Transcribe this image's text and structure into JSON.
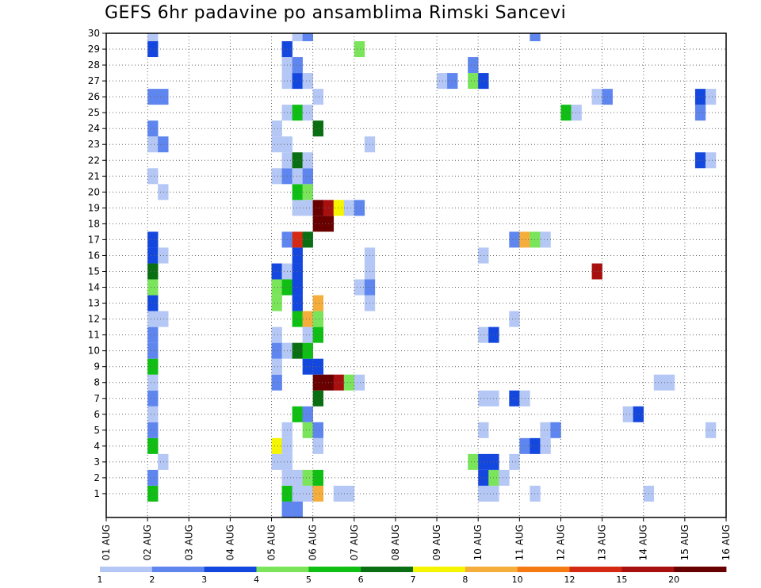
{
  "chart_data": {
    "type": "heatmap",
    "title": "GEFS 6hr padavine po ansamblima Rimski Sancevi",
    "xlabel": "",
    "ylabel": "",
    "x_ticks": [
      "01 AUG",
      "02 AUG",
      "03 AUG",
      "04 AUG",
      "05 AUG",
      "06 AUG",
      "07 AUG",
      "08 AUG",
      "09 AUG",
      "10 AUG",
      "11 AUG",
      "12 AUG",
      "13 AUG",
      "14 AUG",
      "15 AUG",
      "16 AUG"
    ],
    "y_ticks": [
      "1",
      "2",
      "3",
      "4",
      "5",
      "6",
      "7",
      "8",
      "9",
      "10",
      "11",
      "12",
      "13",
      "14",
      "15",
      "16",
      "17",
      "18",
      "19",
      "20",
      "21",
      "22",
      "23",
      "24",
      "25",
      "26",
      "27",
      "28",
      "29",
      "30"
    ],
    "x_range": [
      "01 AUG 00z",
      "16 AUG 00z"
    ],
    "y_range": [
      0,
      30
    ],
    "grid": true,
    "time_step_hours": 6,
    "colorbar": {
      "labels": [
        "1",
        "2",
        "3",
        "4",
        "5",
        "6",
        "7",
        "8",
        "10",
        "12",
        "15",
        "20"
      ],
      "colors": [
        "#b4c7f5",
        "#5f86ef",
        "#1447de",
        "#7ae55a",
        "#0fbf14",
        "#0a6e12",
        "#f5f500",
        "#f5ae3c",
        "#f57a14",
        "#d42a14",
        "#a81010",
        "#690000"
      ]
    },
    "cells": [
      [
        1,
        4,
        5
      ],
      [
        1,
        17,
        5
      ],
      [
        1,
        18,
        1
      ],
      [
        1,
        19,
        1
      ],
      [
        1,
        20,
        8
      ],
      [
        1,
        22,
        1
      ],
      [
        1,
        23,
        1
      ],
      [
        1,
        36,
        1
      ],
      [
        1,
        37,
        1
      ],
      [
        1,
        41,
        1
      ],
      [
        1,
        52,
        1
      ],
      [
        2,
        4,
        2
      ],
      [
        2,
        17,
        1
      ],
      [
        2,
        18,
        1
      ],
      [
        2,
        19,
        4
      ],
      [
        2,
        20,
        5
      ],
      [
        2,
        36,
        3
      ],
      [
        2,
        37,
        4
      ],
      [
        2,
        38,
        1
      ],
      [
        3,
        5,
        1
      ],
      [
        3,
        16,
        1
      ],
      [
        3,
        17,
        1
      ],
      [
        3,
        35,
        4
      ],
      [
        3,
        36,
        3
      ],
      [
        3,
        37,
        3
      ],
      [
        3,
        39,
        1
      ],
      [
        4,
        4,
        5
      ],
      [
        4,
        16,
        7
      ],
      [
        4,
        17,
        1
      ],
      [
        4,
        20,
        1
      ],
      [
        4,
        40,
        2
      ],
      [
        4,
        41,
        3
      ],
      [
        4,
        42,
        1
      ],
      [
        5,
        4,
        2
      ],
      [
        5,
        17,
        1
      ],
      [
        5,
        19,
        4
      ],
      [
        5,
        20,
        2
      ],
      [
        5,
        36,
        1
      ],
      [
        5,
        42,
        1
      ],
      [
        5,
        43,
        2
      ],
      [
        5,
        58,
        1
      ],
      [
        6,
        4,
        1
      ],
      [
        6,
        18,
        5
      ],
      [
        6,
        19,
        2
      ],
      [
        6,
        50,
        1
      ],
      [
        6,
        51,
        3
      ],
      [
        7,
        4,
        2
      ],
      [
        7,
        20,
        6
      ],
      [
        7,
        36,
        1
      ],
      [
        7,
        37,
        1
      ],
      [
        7,
        39,
        3
      ],
      [
        7,
        40,
        1
      ],
      [
        8,
        4,
        1
      ],
      [
        8,
        16,
        2
      ],
      [
        8,
        20,
        12
      ],
      [
        8,
        21,
        12
      ],
      [
        8,
        22,
        11
      ],
      [
        8,
        23,
        4
      ],
      [
        8,
        24,
        1
      ],
      [
        8,
        53,
        1
      ],
      [
        8,
        54,
        1
      ],
      [
        9,
        4,
        5
      ],
      [
        9,
        16,
        1
      ],
      [
        9,
        19,
        3
      ],
      [
        9,
        20,
        3
      ],
      [
        10,
        4,
        2
      ],
      [
        10,
        16,
        2
      ],
      [
        10,
        17,
        1
      ],
      [
        10,
        18,
        6
      ],
      [
        10,
        19,
        5
      ],
      [
        11,
        4,
        2
      ],
      [
        11,
        16,
        1
      ],
      [
        11,
        19,
        1
      ],
      [
        11,
        20,
        5
      ],
      [
        11,
        36,
        1
      ],
      [
        11,
        37,
        3
      ],
      [
        12,
        4,
        1
      ],
      [
        12,
        5,
        1
      ],
      [
        12,
        18,
        5
      ],
      [
        12,
        19,
        8
      ],
      [
        12,
        20,
        4
      ],
      [
        12,
        39,
        1
      ],
      [
        13,
        4,
        3
      ],
      [
        13,
        16,
        4
      ],
      [
        13,
        18,
        3
      ],
      [
        13,
        20,
        8
      ],
      [
        13,
        25,
        1
      ],
      [
        14,
        4,
        4
      ],
      [
        14,
        16,
        4
      ],
      [
        14,
        17,
        5
      ],
      [
        14,
        18,
        3
      ],
      [
        14,
        24,
        1
      ],
      [
        14,
        25,
        2
      ],
      [
        15,
        4,
        6
      ],
      [
        15,
        16,
        3
      ],
      [
        15,
        17,
        1
      ],
      [
        15,
        18,
        3
      ],
      [
        15,
        25,
        1
      ],
      [
        15,
        47,
        11
      ],
      [
        16,
        4,
        3
      ],
      [
        16,
        5,
        1
      ],
      [
        16,
        18,
        3
      ],
      [
        16,
        25,
        1
      ],
      [
        16,
        36,
        1
      ],
      [
        17,
        4,
        3
      ],
      [
        17,
        17,
        2
      ],
      [
        17,
        18,
        10
      ],
      [
        17,
        19,
        6
      ],
      [
        17,
        39,
        2
      ],
      [
        17,
        40,
        8
      ],
      [
        17,
        41,
        4
      ],
      [
        17,
        42,
        1
      ],
      [
        18,
        20,
        12
      ],
      [
        18,
        21,
        12
      ],
      [
        19,
        18,
        1
      ],
      [
        19,
        19,
        1
      ],
      [
        19,
        20,
        12
      ],
      [
        19,
        21,
        11
      ],
      [
        19,
        22,
        7
      ],
      [
        19,
        23,
        1
      ],
      [
        19,
        24,
        2
      ],
      [
        20,
        5,
        1
      ],
      [
        20,
        18,
        5
      ],
      [
        20,
        19,
        4
      ],
      [
        21,
        4,
        1
      ],
      [
        21,
        16,
        1
      ],
      [
        21,
        17,
        2
      ],
      [
        21,
        18,
        1
      ],
      [
        21,
        19,
        2
      ],
      [
        22,
        17,
        1
      ],
      [
        22,
        18,
        6
      ],
      [
        22,
        19,
        1
      ],
      [
        22,
        57,
        3
      ],
      [
        22,
        58,
        1
      ],
      [
        23,
        4,
        1
      ],
      [
        23,
        5,
        2
      ],
      [
        23,
        16,
        1
      ],
      [
        23,
        17,
        1
      ],
      [
        23,
        25,
        1
      ],
      [
        24,
        4,
        2
      ],
      [
        24,
        16,
        1
      ],
      [
        24,
        20,
        6
      ],
      [
        25,
        17,
        1
      ],
      [
        25,
        18,
        5
      ],
      [
        25,
        19,
        1
      ],
      [
        25,
        44,
        5
      ],
      [
        25,
        45,
        1
      ],
      [
        25,
        57,
        2
      ],
      [
        26,
        4,
        2
      ],
      [
        26,
        5,
        2
      ],
      [
        26,
        20,
        1
      ],
      [
        26,
        47,
        1
      ],
      [
        26,
        48,
        2
      ],
      [
        26,
        57,
        3
      ],
      [
        26,
        58,
        1
      ],
      [
        27,
        17,
        1
      ],
      [
        27,
        18,
        3
      ],
      [
        27,
        19,
        1
      ],
      [
        27,
        32,
        1
      ],
      [
        27,
        33,
        2
      ],
      [
        27,
        35,
        4
      ],
      [
        27,
        36,
        3
      ],
      [
        28,
        17,
        1
      ],
      [
        28,
        18,
        2
      ],
      [
        28,
        35,
        2
      ],
      [
        29,
        4,
        3
      ],
      [
        29,
        17,
        3
      ],
      [
        29,
        24,
        4
      ],
      [
        30,
        4,
        1
      ],
      [
        30,
        18,
        1
      ],
      [
        30,
        19,
        2
      ],
      [
        30,
        41,
        2
      ],
      [
        0,
        17,
        2
      ],
      [
        0,
        18,
        2
      ]
    ]
  }
}
